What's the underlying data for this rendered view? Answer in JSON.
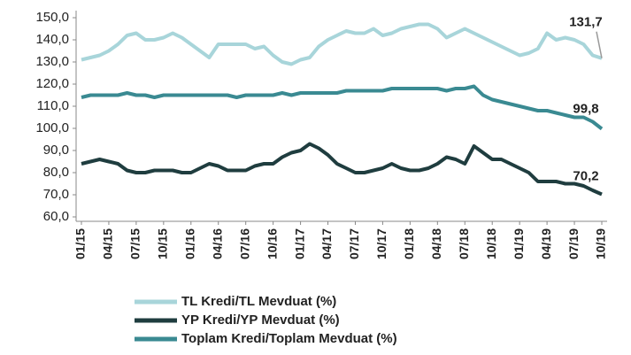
{
  "chart_data": {
    "type": "line",
    "categories": [
      "01/15",
      null,
      null,
      "04/15",
      null,
      null,
      "07/15",
      null,
      null,
      "10/15",
      null,
      null,
      "01/16",
      null,
      null,
      "04/16",
      null,
      null,
      "07/16",
      null,
      null,
      "10/16",
      null,
      null,
      "01/17",
      null,
      null,
      "04/17",
      null,
      null,
      "07/17",
      null,
      null,
      "10/17",
      null,
      null,
      "01/18",
      null,
      null,
      "04/18",
      null,
      null,
      "07/18",
      null,
      null,
      "10/18",
      null,
      null,
      "01/19",
      null,
      null,
      "04/19",
      null,
      null,
      "07/19",
      null,
      null,
      "10/19"
    ],
    "series": [
      {
        "name": "TL Kredi/TL Mevduat (%)",
        "color": "#a8d5da",
        "values": [
          131,
          132,
          133,
          135,
          138,
          142,
          143,
          140,
          140,
          141,
          143,
          141,
          138,
          135,
          132,
          138,
          138,
          138,
          138,
          136,
          137,
          133,
          130,
          129,
          131,
          132,
          137,
          140,
          142,
          144,
          143,
          143,
          145,
          142,
          143,
          145,
          146,
          147,
          147,
          145,
          141,
          143,
          145,
          143,
          141,
          139,
          137,
          135,
          133,
          134,
          136,
          143,
          140,
          141,
          140,
          138,
          133,
          131.7
        ],
        "value_labels": [
          null,
          null,
          null,
          null,
          null,
          null,
          null,
          null,
          null,
          null,
          null,
          null,
          null,
          null,
          null,
          null,
          null,
          null,
          null,
          null,
          null,
          null,
          null,
          null,
          null,
          null,
          null,
          null,
          null,
          null,
          null,
          null,
          null,
          null,
          null,
          null,
          null,
          null,
          null,
          null,
          null,
          null,
          null,
          null,
          null,
          null,
          null,
          null,
          null,
          null,
          null,
          null,
          null,
          null,
          null,
          null,
          null,
          "131,7"
        ]
      },
      {
        "name": "YP Kredi/YP Mevduat (%)",
        "color": "#1f3d3f",
        "values": [
          84,
          85,
          86,
          85,
          84,
          81,
          80,
          80,
          81,
          81,
          81,
          80,
          80,
          82,
          84,
          83,
          81,
          81,
          81,
          83,
          84,
          84,
          87,
          89,
          90,
          93,
          91,
          88,
          84,
          82,
          80,
          80,
          81,
          82,
          84,
          82,
          81,
          81,
          82,
          84,
          87,
          86,
          84,
          92,
          89,
          86,
          86,
          84,
          82,
          80,
          76,
          76,
          76,
          75,
          75,
          74,
          72,
          70.2
        ],
        "value_labels": [
          null,
          null,
          null,
          null,
          null,
          null,
          null,
          null,
          null,
          null,
          null,
          null,
          null,
          null,
          null,
          null,
          null,
          null,
          null,
          null,
          null,
          null,
          null,
          null,
          null,
          null,
          null,
          null,
          null,
          null,
          null,
          null,
          null,
          null,
          null,
          null,
          null,
          null,
          null,
          null,
          null,
          null,
          null,
          null,
          null,
          null,
          null,
          null,
          null,
          null,
          null,
          null,
          null,
          null,
          null,
          null,
          null,
          "70,2"
        ]
      },
      {
        "name": "Toplam Kredi/Toplam Mevduat (%)",
        "color": "#3a8a92",
        "values": [
          114,
          115,
          115,
          115,
          115,
          116,
          115,
          115,
          114,
          115,
          115,
          115,
          115,
          115,
          115,
          115,
          115,
          114,
          115,
          115,
          115,
          115,
          116,
          115,
          116,
          116,
          116,
          116,
          116,
          117,
          117,
          117,
          117,
          117,
          118,
          118,
          118,
          118,
          118,
          118,
          117,
          118,
          118,
          119,
          115,
          113,
          112,
          111,
          110,
          109,
          108,
          108,
          107,
          106,
          105,
          105,
          103,
          99.8
        ],
        "value_labels": [
          null,
          null,
          null,
          null,
          null,
          null,
          null,
          null,
          null,
          null,
          null,
          null,
          null,
          null,
          null,
          null,
          null,
          null,
          null,
          null,
          null,
          null,
          null,
          null,
          null,
          null,
          null,
          null,
          null,
          null,
          null,
          null,
          null,
          null,
          null,
          null,
          null,
          null,
          null,
          null,
          null,
          null,
          null,
          null,
          null,
          null,
          null,
          null,
          null,
          null,
          null,
          null,
          null,
          null,
          null,
          null,
          null,
          "99,8"
        ]
      }
    ],
    "ylim": [
      60,
      150
    ],
    "yticks": [
      {
        "value": 60,
        "label": "60,0"
      },
      {
        "value": 70,
        "label": "70,0"
      },
      {
        "value": 80,
        "label": "80,0"
      },
      {
        "value": 90,
        "label": "90,0"
      },
      {
        "value": 100,
        "label": "100,0"
      },
      {
        "value": 110,
        "label": "110,0"
      },
      {
        "value": 120,
        "label": "120,0"
      },
      {
        "value": 130,
        "label": "130,0"
      },
      {
        "value": 140,
        "label": "140,0"
      },
      {
        "value": 150,
        "label": "150,0"
      }
    ]
  }
}
